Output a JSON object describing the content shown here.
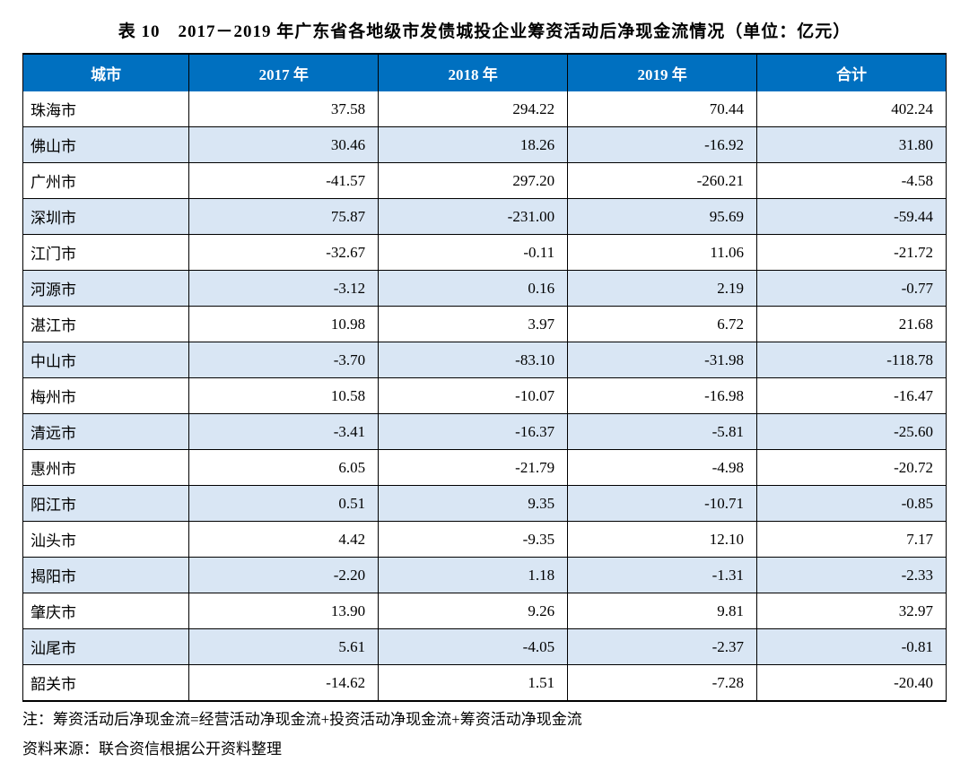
{
  "title": "表 10　2017－2019 年广东省各地级市发债城投企业筹资活动后净现金流情况（单位：亿元）",
  "table": {
    "header_bg": "#0070c0",
    "header_fg": "#ffffff",
    "row_alt_bg": "#d9e6f4",
    "row_bg": "#ffffff",
    "border_color": "#000000",
    "columns": [
      "城市",
      "2017 年",
      "2018 年",
      "2019 年",
      "合计"
    ],
    "rows": [
      [
        "珠海市",
        "37.58",
        "294.22",
        "70.44",
        "402.24"
      ],
      [
        "佛山市",
        "30.46",
        "18.26",
        "-16.92",
        "31.80"
      ],
      [
        "广州市",
        "-41.57",
        "297.20",
        "-260.21",
        "-4.58"
      ],
      [
        "深圳市",
        "75.87",
        "-231.00",
        "95.69",
        "-59.44"
      ],
      [
        "江门市",
        "-32.67",
        "-0.11",
        "11.06",
        "-21.72"
      ],
      [
        "河源市",
        "-3.12",
        "0.16",
        "2.19",
        "-0.77"
      ],
      [
        "湛江市",
        "10.98",
        "3.97",
        "6.72",
        "21.68"
      ],
      [
        "中山市",
        "-3.70",
        "-83.10",
        "-31.98",
        "-118.78"
      ],
      [
        "梅州市",
        "10.58",
        "-10.07",
        "-16.98",
        "-16.47"
      ],
      [
        "清远市",
        "-3.41",
        "-16.37",
        "-5.81",
        "-25.60"
      ],
      [
        "惠州市",
        "6.05",
        "-21.79",
        "-4.98",
        "-20.72"
      ],
      [
        "阳江市",
        "0.51",
        "9.35",
        "-10.71",
        "-0.85"
      ],
      [
        "汕头市",
        "4.42",
        "-9.35",
        "12.10",
        "7.17"
      ],
      [
        "揭阳市",
        "-2.20",
        "1.18",
        "-1.31",
        "-2.33"
      ],
      [
        "肇庆市",
        "13.90",
        "9.26",
        "9.81",
        "32.97"
      ],
      [
        "汕尾市",
        "5.61",
        "-4.05",
        "-2.37",
        "-0.81"
      ],
      [
        "韶关市",
        "-14.62",
        "1.51",
        "-7.28",
        "-20.40"
      ]
    ]
  },
  "footnote1": "注：筹资活动后净现金流=经营活动净现金流+投资活动净现金流+筹资活动净现金流",
  "footnote2": "资料来源：联合资信根据公开资料整理"
}
